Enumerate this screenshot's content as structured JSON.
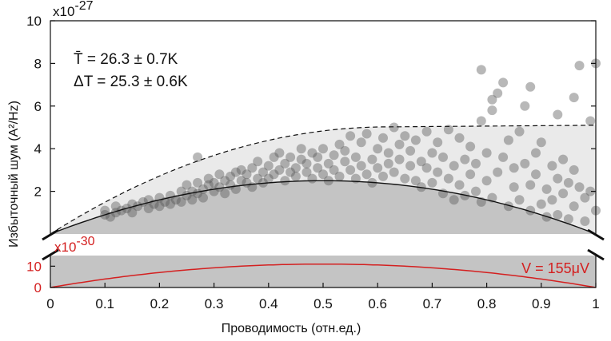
{
  "chart_data": [
    {
      "type": "scatter",
      "panel": "top",
      "title": "",
      "xlabel": "Проводимость (отн.ед.)",
      "ylabel": "Избыточный шум (A²/Hz)",
      "y_multiplier": "x10",
      "y_multiplier_exponent": "-27",
      "xlim": [
        0,
        1
      ],
      "ylim": [
        0,
        10
      ],
      "x_ticks": [
        "0",
        "0.1",
        "0.2",
        "0.3",
        "0.4",
        "0.5",
        "0.6",
        "0.7",
        "0.8",
        "0.9",
        "1"
      ],
      "y_ticks": [
        "2",
        "4",
        "6",
        "8",
        "10"
      ],
      "annotation_line1": "T̄ = 26.3 ± 0.7K",
      "annotation_line2": "ΔT = 25.3 ± 0.6K",
      "curves": [
        {
          "style": "solid",
          "peak": 2.5,
          "formula": "10*peak*x*(1-x)"
        },
        {
          "style": "dashed",
          "peak": 5.1,
          "formula": "upper bound, saturating"
        }
      ],
      "points": [
        [
          0.1,
          0.9
        ],
        [
          0.1,
          1.1
        ],
        [
          0.11,
          0.8
        ],
        [
          0.12,
          1.3
        ],
        [
          0.12,
          1.0
        ],
        [
          0.13,
          1.1
        ],
        [
          0.14,
          1.2
        ],
        [
          0.15,
          1.4
        ],
        [
          0.15,
          1.0
        ],
        [
          0.16,
          1.3
        ],
        [
          0.17,
          1.5
        ],
        [
          0.18,
          1.2
        ],
        [
          0.18,
          1.6
        ],
        [
          0.19,
          1.4
        ],
        [
          0.2,
          1.7
        ],
        [
          0.2,
          1.3
        ],
        [
          0.21,
          1.5
        ],
        [
          0.22,
          1.8
        ],
        [
          0.22,
          1.4
        ],
        [
          0.23,
          1.6
        ],
        [
          0.24,
          2.0
        ],
        [
          0.24,
          1.5
        ],
        [
          0.25,
          1.8
        ],
        [
          0.25,
          2.3
        ],
        [
          0.26,
          1.6
        ],
        [
          0.26,
          2.0
        ],
        [
          0.27,
          2.4
        ],
        [
          0.27,
          1.9
        ],
        [
          0.27,
          3.6
        ],
        [
          0.28,
          2.1
        ],
        [
          0.28,
          1.7
        ],
        [
          0.29,
          2.3
        ],
        [
          0.29,
          2.6
        ],
        [
          0.3,
          2.0
        ],
        [
          0.3,
          2.4
        ],
        [
          0.31,
          2.8
        ],
        [
          0.31,
          2.2
        ],
        [
          0.32,
          2.5
        ],
        [
          0.32,
          1.9
        ],
        [
          0.33,
          2.7
        ],
        [
          0.33,
          2.3
        ],
        [
          0.34,
          2.9
        ],
        [
          0.34,
          2.1
        ],
        [
          0.35,
          2.5
        ],
        [
          0.35,
          3.0
        ],
        [
          0.36,
          2.4
        ],
        [
          0.36,
          2.8
        ],
        [
          0.37,
          2.2
        ],
        [
          0.37,
          3.1
        ],
        [
          0.38,
          2.6
        ],
        [
          0.38,
          3.4
        ],
        [
          0.39,
          2.4
        ],
        [
          0.39,
          2.9
        ],
        [
          0.4,
          3.2
        ],
        [
          0.4,
          2.6
        ],
        [
          0.41,
          3.6
        ],
        [
          0.41,
          2.8
        ],
        [
          0.42,
          3.0
        ],
        [
          0.42,
          3.8
        ],
        [
          0.43,
          2.5
        ],
        [
          0.43,
          3.3
        ],
        [
          0.44,
          2.9
        ],
        [
          0.44,
          3.6
        ],
        [
          0.45,
          3.1
        ],
        [
          0.45,
          2.7
        ],
        [
          0.46,
          3.5
        ],
        [
          0.46,
          4.0
        ],
        [
          0.47,
          2.9
        ],
        [
          0.47,
          3.3
        ],
        [
          0.48,
          3.8
        ],
        [
          0.48,
          2.6
        ],
        [
          0.49,
          3.1
        ],
        [
          0.49,
          3.6
        ],
        [
          0.5,
          2.8
        ],
        [
          0.5,
          4.0
        ],
        [
          0.51,
          3.3
        ],
        [
          0.51,
          2.5
        ],
        [
          0.52,
          3.7
        ],
        [
          0.52,
          3.0
        ],
        [
          0.53,
          4.2
        ],
        [
          0.53,
          2.7
        ],
        [
          0.54,
          3.4
        ],
        [
          0.54,
          3.9
        ],
        [
          0.55,
          3.0
        ],
        [
          0.55,
          4.6
        ],
        [
          0.56,
          2.6
        ],
        [
          0.56,
          3.6
        ],
        [
          0.57,
          4.3
        ],
        [
          0.57,
          3.2
        ],
        [
          0.58,
          2.8
        ],
        [
          0.58,
          4.7
        ],
        [
          0.59,
          3.5
        ],
        [
          0.59,
          2.4
        ],
        [
          0.6,
          4.0
        ],
        [
          0.6,
          3.1
        ],
        [
          0.61,
          4.5
        ],
        [
          0.61,
          2.7
        ],
        [
          0.62,
          3.8
        ],
        [
          0.62,
          3.3
        ],
        [
          0.63,
          5.0
        ],
        [
          0.63,
          2.9
        ],
        [
          0.64,
          4.2
        ],
        [
          0.64,
          3.5
        ],
        [
          0.65,
          2.6
        ],
        [
          0.65,
          4.6
        ],
        [
          0.66,
          3.2
        ],
        [
          0.66,
          3.9
        ],
        [
          0.67,
          2.5
        ],
        [
          0.67,
          4.4
        ],
        [
          0.68,
          3.4
        ],
        [
          0.68,
          2.2
        ],
        [
          0.69,
          4.8
        ],
        [
          0.69,
          3.1
        ],
        [
          0.7,
          3.8
        ],
        [
          0.7,
          2.4
        ],
        [
          0.71,
          4.3
        ],
        [
          0.71,
          2.9
        ],
        [
          0.72,
          3.6
        ],
        [
          0.72,
          1.9
        ],
        [
          0.73,
          4.9
        ],
        [
          0.73,
          2.6
        ],
        [
          0.74,
          3.2
        ],
        [
          0.74,
          1.6
        ],
        [
          0.75,
          4.5
        ],
        [
          0.75,
          2.3
        ],
        [
          0.76,
          3.5
        ],
        [
          0.76,
          1.8
        ],
        [
          0.77,
          2.8
        ],
        [
          0.77,
          4.1
        ],
        [
          0.78,
          2.0
        ],
        [
          0.78,
          3.3
        ],
        [
          0.79,
          1.5
        ],
        [
          0.79,
          5.3
        ],
        [
          0.8,
          2.5
        ],
        [
          0.8,
          3.8
        ],
        [
          0.81,
          1.7
        ],
        [
          0.81,
          5.8
        ],
        [
          0.82,
          2.9
        ],
        [
          0.82,
          6.6
        ],
        [
          0.83,
          7.1
        ],
        [
          0.83,
          3.6
        ],
        [
          0.84,
          1.3
        ],
        [
          0.84,
          4.4
        ],
        [
          0.85,
          2.2
        ],
        [
          0.85,
          3.1
        ],
        [
          0.86,
          4.8
        ],
        [
          0.86,
          1.6
        ],
        [
          0.87,
          3.3
        ],
        [
          0.87,
          6.0
        ],
        [
          0.88,
          2.3
        ],
        [
          0.88,
          1.1
        ],
        [
          0.89,
          3.8
        ],
        [
          0.89,
          2.8
        ],
        [
          0.9,
          1.4
        ],
        [
          0.9,
          4.3
        ],
        [
          0.91,
          2.1
        ],
        [
          0.91,
          0.8
        ],
        [
          0.92,
          3.2
        ],
        [
          0.92,
          1.6
        ],
        [
          0.93,
          2.6
        ],
        [
          0.93,
          0.9
        ],
        [
          0.94,
          3.5
        ],
        [
          0.94,
          1.9
        ],
        [
          0.95,
          2.4
        ],
        [
          0.95,
          0.7
        ],
        [
          0.96,
          3.0
        ],
        [
          0.96,
          1.3
        ],
        [
          0.97,
          2.2
        ],
        [
          0.97,
          7.9
        ],
        [
          0.98,
          1.7
        ],
        [
          0.98,
          0.6
        ],
        [
          0.99,
          5.3
        ],
        [
          0.99,
          2.0
        ],
        [
          1.0,
          8.0
        ],
        [
          1.0,
          1.1
        ],
        [
          0.96,
          6.4
        ],
        [
          0.93,
          5.6
        ],
        [
          0.88,
          6.9
        ],
        [
          0.79,
          7.7
        ],
        [
          0.81,
          6.3
        ]
      ]
    },
    {
      "type": "line",
      "panel": "bottom",
      "y_multiplier": "x10",
      "y_multiplier_exponent": "-30",
      "ylim": [
        0,
        15
      ],
      "y_ticks": [
        "0",
        "10"
      ],
      "series": [
        {
          "name": "V = 155μV",
          "peak": 11.0,
          "formula": "4*peak*x*(1-x)"
        }
      ]
    }
  ],
  "colors": {
    "region_light": "#eaeaea",
    "region_dark": "#c4c4c4",
    "point": "#555555",
    "curve": "#111111",
    "accent_red": "#d42020"
  }
}
